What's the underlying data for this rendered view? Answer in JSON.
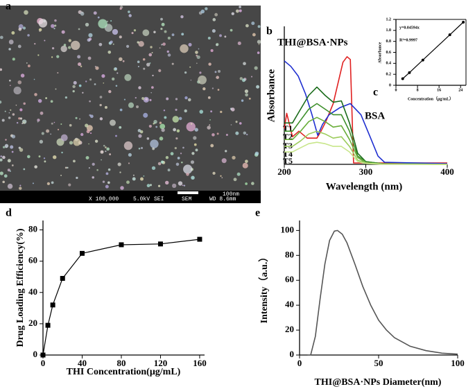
{
  "panel_labels": [
    "a",
    "b",
    "c",
    "d",
    "e"
  ],
  "sem_image": {
    "scale_bar": "100nm",
    "info": [
      "X 100,000",
      "5.0kV",
      "SEI",
      "SEM",
      "WD 8.6mm"
    ]
  },
  "chart_data": [
    {
      "type": "line",
      "xlabel": "Wavelength (nm)",
      "ylabel": "Absorbance",
      "xlim": [
        200,
        400
      ],
      "xticks": [
        200,
        300,
        400
      ],
      "ylim": [
        0,
        1
      ],
      "series": [
        {
          "name": "THI@BSA·NPs",
          "color": "#e02020",
          "x": [
            200,
            203,
            210,
            218,
            228,
            240,
            245,
            251,
            260,
            268,
            272,
            277,
            281,
            285,
            300,
            400
          ],
          "values": [
            0.26,
            0.37,
            0.2,
            0.24,
            0.19,
            0.19,
            0.24,
            0.31,
            0.44,
            0.64,
            0.74,
            0.78,
            0.76,
            0.01,
            0.01,
            0.01
          ]
        },
        {
          "name": "BSA",
          "color": "#1f2fd0",
          "x": [
            200,
            208,
            217,
            226,
            234,
            241,
            247,
            255,
            268,
            281,
            294,
            306,
            315,
            323,
            400
          ],
          "values": [
            0.75,
            0.71,
            0.64,
            0.51,
            0.36,
            0.21,
            0.29,
            0.36,
            0.41,
            0.44,
            0.36,
            0.19,
            0.06,
            0.015,
            0.005
          ]
        },
        {
          "name": "T1",
          "color": "#1a6b1a",
          "x": [
            200,
            210,
            220,
            230,
            240,
            250,
            260,
            270,
            280,
            290,
            300,
            320,
            400
          ],
          "values": [
            0.3,
            0.3,
            0.4,
            0.5,
            0.56,
            0.5,
            0.45,
            0.46,
            0.3,
            0.08,
            0.02,
            0.005,
            0
          ]
        },
        {
          "name": "T2",
          "color": "#3d8f2a",
          "x": [
            200,
            210,
            220,
            230,
            240,
            250,
            260,
            270,
            280,
            290,
            300,
            320,
            400
          ],
          "values": [
            0.24,
            0.24,
            0.32,
            0.4,
            0.44,
            0.4,
            0.36,
            0.36,
            0.24,
            0.06,
            0.02,
            0.005,
            0
          ]
        },
        {
          "name": "T3",
          "color": "#6aae3a",
          "x": [
            200,
            210,
            220,
            230,
            240,
            250,
            260,
            270,
            280,
            290,
            300,
            320,
            400
          ],
          "values": [
            0.18,
            0.18,
            0.24,
            0.31,
            0.34,
            0.31,
            0.27,
            0.28,
            0.18,
            0.05,
            0.01,
            0.003,
            0
          ]
        },
        {
          "name": "T4",
          "color": "#9ccc5c",
          "x": [
            200,
            210,
            220,
            230,
            240,
            250,
            260,
            270,
            280,
            290,
            300,
            320,
            400
          ],
          "values": [
            0.13,
            0.13,
            0.17,
            0.22,
            0.24,
            0.22,
            0.19,
            0.2,
            0.13,
            0.03,
            0.01,
            0.002,
            0
          ]
        },
        {
          "name": "T5",
          "color": "#c8e68a",
          "x": [
            200,
            210,
            220,
            230,
            240,
            250,
            260,
            270,
            280,
            290,
            300,
            320,
            400
          ],
          "values": [
            0.09,
            0.09,
            0.12,
            0.15,
            0.16,
            0.15,
            0.13,
            0.13,
            0.09,
            0.02,
            0.006,
            0.001,
            0
          ]
        }
      ]
    },
    {
      "type": "line",
      "markers": "circle",
      "xlabel": "Concentration（μg/mL）",
      "ylabel": "Absorbance",
      "xlim": [
        0,
        26
      ],
      "xticks": [
        0,
        8,
        16,
        24
      ],
      "ylim": [
        0,
        1.2
      ],
      "yticks": [
        0,
        0.2,
        0.4,
        0.6,
        0.8,
        {
          "value": 1,
          "label": "1.0"
        },
        1.2
      ],
      "annotations": [
        "y=0.04594x",
        "R²=0.9997"
      ],
      "series": [
        {
          "color": "#000000",
          "x": [
            2.5,
            5,
            10,
            20,
            25
          ],
          "values": [
            0.12,
            0.23,
            0.46,
            0.92,
            1.15
          ]
        }
      ]
    },
    {
      "type": "line",
      "markers": "square",
      "xlabel": "THI Concentration(μg/mL)",
      "ylabel": "Drug Loading Efficiency(%)",
      "xlim": [
        0,
        165
      ],
      "xticks": [
        0,
        40,
        80,
        120,
        160
      ],
      "ylim": [
        0,
        86
      ],
      "yticks": [
        0,
        20,
        40,
        60,
        80
      ],
      "series": [
        {
          "color": "#000000",
          "x": [
            0,
            5,
            10,
            20,
            40,
            80,
            120,
            160
          ],
          "values": [
            0,
            19,
            32,
            49,
            65,
            70.5,
            71,
            74
          ]
        }
      ]
    },
    {
      "type": "line",
      "xlabel": "THI@BSA·NPs Diameter(nm)",
      "ylabel": "Intensity（a.u.）",
      "xlim": [
        0,
        100
      ],
      "xticks": [
        0,
        50,
        100
      ],
      "ylim": [
        0,
        108
      ],
      "yticks": [
        0,
        20,
        40,
        60,
        80,
        100
      ],
      "series": [
        {
          "color": "#555555",
          "x": [
            5,
            7,
            10,
            13,
            16,
            19,
            22,
            24,
            27,
            30,
            35,
            40,
            45,
            50,
            55,
            60,
            70,
            80,
            90,
            100
          ],
          "values": [
            0,
            0,
            15,
            45,
            73,
            92,
            99.5,
            100,
            97,
            90,
            73,
            55,
            40,
            28,
            20,
            14,
            7,
            3.5,
            1.5,
            0.7
          ]
        }
      ]
    }
  ]
}
